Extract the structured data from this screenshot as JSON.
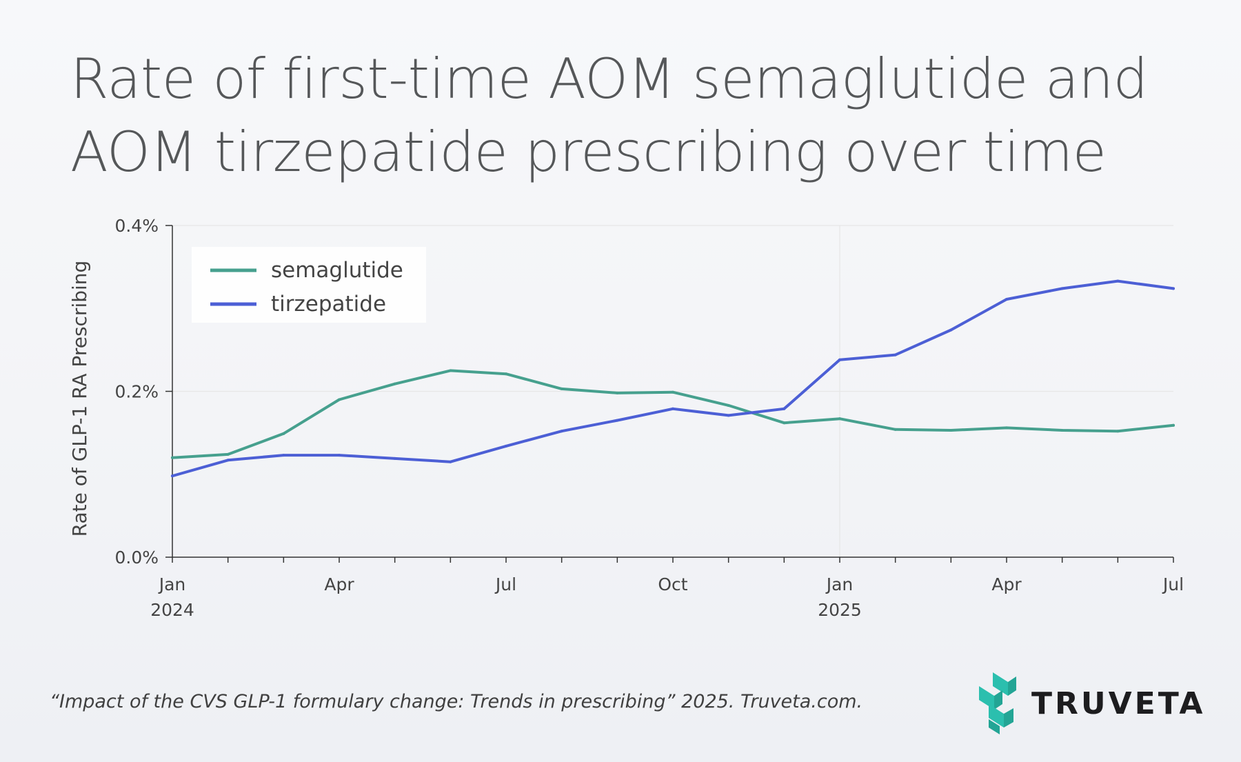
{
  "header": {
    "title_line1": "Rate of first-time AOM semaglutide and",
    "title_line2": "AOM tirzepatide prescribing over time"
  },
  "footer": {
    "citation": "“Impact of the CVS GLP-1 formulary change: Trends in prescribing” 2025. Truveta.com.",
    "logo_text": "TRUVETA"
  },
  "colors": {
    "semaglutide": "#46a08e",
    "tirzepatide": "#4c5fd5",
    "logo_accent": "#2bbfae",
    "gridline": "#e6e6e6",
    "axis": "#333333"
  },
  "chart_data": {
    "type": "line",
    "title": "",
    "xlabel": "",
    "ylabel": "Rate of GLP-1 RA Prescribing",
    "x": [
      "2024-01",
      "2024-02",
      "2024-03",
      "2024-04",
      "2024-05",
      "2024-06",
      "2024-07",
      "2024-08",
      "2024-09",
      "2024-10",
      "2024-11",
      "2024-12",
      "2025-01",
      "2025-02",
      "2025-03",
      "2025-04",
      "2025-05",
      "2025-06",
      "2025-07"
    ],
    "series": [
      {
        "name": "semaglutide",
        "color": "#46a08e",
        "values": [
          0.12,
          0.124,
          0.149,
          0.19,
          0.209,
          0.225,
          0.221,
          0.203,
          0.198,
          0.199,
          0.183,
          0.162,
          0.167,
          0.154,
          0.153,
          0.156,
          0.153,
          0.152,
          0.159
        ]
      },
      {
        "name": "tirzepatide",
        "color": "#4c5fd5",
        "values": [
          0.098,
          0.117,
          0.123,
          0.123,
          0.119,
          0.115,
          0.134,
          0.152,
          0.165,
          0.179,
          0.171,
          0.179,
          0.238,
          0.244,
          0.274,
          0.311,
          0.324,
          0.333,
          0.324
        ]
      }
    ],
    "ylim": [
      0,
      0.4
    ],
    "y_ticks": [
      {
        "value": 0,
        "label": "0.0%"
      },
      {
        "value": 0.2,
        "label": "0.2%"
      },
      {
        "value": 0.4,
        "label": "0.4%"
      }
    ],
    "x_tick_labels": [
      {
        "month": "2024-01",
        "line1": "Jan",
        "line2": "2024"
      },
      {
        "month": "2024-04",
        "line1": "Apr",
        "line2": ""
      },
      {
        "month": "2024-07",
        "line1": "Jul",
        "line2": ""
      },
      {
        "month": "2024-10",
        "line1": "Oct",
        "line2": ""
      },
      {
        "month": "2025-01",
        "line1": "Jan",
        "line2": "2025"
      },
      {
        "month": "2025-04",
        "line1": "Apr",
        "line2": ""
      },
      {
        "month": "2025-07",
        "line1": "Jul",
        "line2": ""
      }
    ],
    "x_gridlines": [
      "2025-01"
    ],
    "y_gridlines": [
      0.2,
      0.4
    ],
    "legend": {
      "position": "top-left",
      "entries": [
        "semaglutide",
        "tirzepatide"
      ]
    }
  }
}
